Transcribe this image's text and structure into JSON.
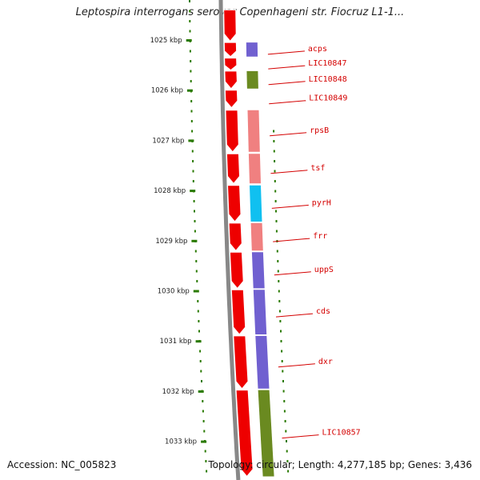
{
  "title": "Leptospira interrogans serovar Copenhageni str. Fiocruz L1-1...",
  "footer": {
    "accession": "Accession: NC_005823",
    "summary": "Topology: circular; Length: 4,277,185 bp; Genes: 3,436"
  },
  "colors": {
    "cds_red": "#ee0000",
    "backbone": "#888888",
    "tick_green": "#2a7a00",
    "label_red": "#d40000",
    "cog_purple": "#7060d0",
    "cog_olive": "#6a8a20",
    "cog_salmon": "#f08080",
    "cog_cyan": "#10c0f0"
  },
  "scale": {
    "unit": "kbp",
    "ticks": [
      {
        "label": "1025 kbp",
        "kbp": 1025
      },
      {
        "label": "1026 kbp",
        "kbp": 1026
      },
      {
        "label": "1027 kbp",
        "kbp": 1027
      },
      {
        "label": "1028 kbp",
        "kbp": 1028
      },
      {
        "label": "1029 kbp",
        "kbp": 1029
      },
      {
        "label": "1030 kbp",
        "kbp": 1030
      },
      {
        "label": "1031 kbp",
        "kbp": 1031
      },
      {
        "label": "1032 kbp",
        "kbp": 1032
      },
      {
        "label": "1033 kbp",
        "kbp": 1033
      }
    ]
  },
  "genes": [
    {
      "name": "acps",
      "start": 1025.05,
      "end": 1025.33,
      "cog_color": "#7060d0"
    },
    {
      "name": "LIC10847",
      "start": 1025.36,
      "end": 1025.6,
      "cog_color": ""
    },
    {
      "name": "LIC10848",
      "start": 1025.62,
      "end": 1025.97,
      "cog_color": "#6a8a20"
    },
    {
      "name": "LIC10849",
      "start": 1026.0,
      "end": 1026.35,
      "cog_color": ""
    },
    {
      "name": "rpsB",
      "start": 1026.4,
      "end": 1027.23,
      "cog_color": "#f08080"
    },
    {
      "name": "tsf",
      "start": 1027.27,
      "end": 1027.86,
      "cog_color": "#f08080"
    },
    {
      "name": "pyrH",
      "start": 1027.9,
      "end": 1028.62,
      "cog_color": "#10c0f0"
    },
    {
      "name": "frr",
      "start": 1028.65,
      "end": 1029.2,
      "cog_color": "#f08080"
    },
    {
      "name": "uppS",
      "start": 1029.23,
      "end": 1029.95,
      "cog_color": "#7060d0"
    },
    {
      "name": "cds",
      "start": 1029.98,
      "end": 1030.87,
      "cog_color": "#7060d0"
    },
    {
      "name": "dxr",
      "start": 1030.9,
      "end": 1031.95,
      "cog_color": "#7060d0"
    },
    {
      "name": "LIC10857",
      "start": 1031.98,
      "end": 1033.7,
      "cog_color": "#6a8a20"
    }
  ],
  "upstream_cds": {
    "start": 1024.4,
    "end": 1025.02
  }
}
